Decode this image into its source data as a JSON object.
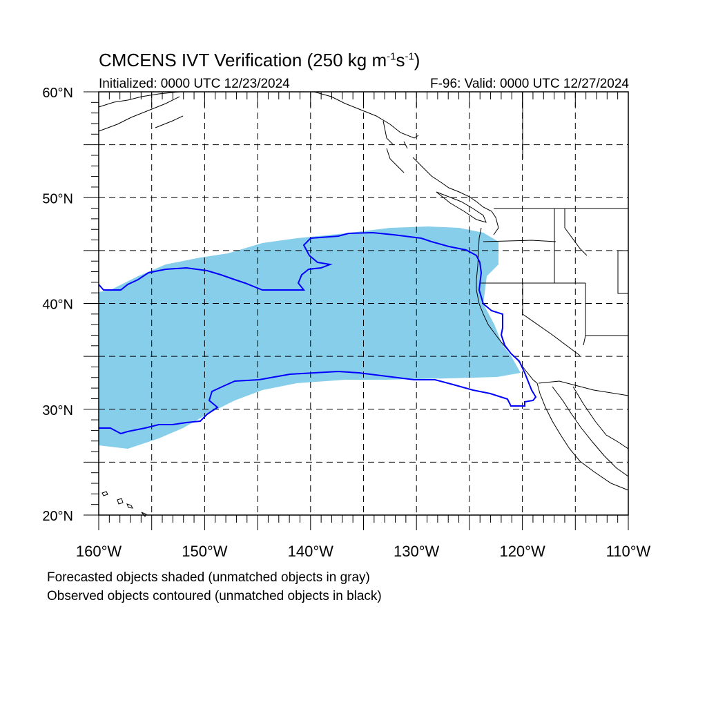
{
  "title": {
    "text": "CMCENS IVT Verification (250 kg m",
    "exp1": "-1",
    "mid": "s",
    "exp2": "-1",
    "close": ")"
  },
  "initialized": "Initialized: 0000 UTC 12/23/2024",
  "valid": "F-96: Valid: 0000 UTC 12/27/2024",
  "notes": {
    "forecast": "Forecasted objects shaded (unmatched objects in gray)",
    "observed": "Observed objects contoured (unmatched objects in black)"
  },
  "map": {
    "projection": "cylindrical equidistant",
    "lon_range": [
      -160,
      -110
    ],
    "lat_range": [
      20,
      60
    ],
    "grid": "dashed every 5 degrees",
    "lon_labels": [
      {
        "lon": -160,
        "text": "160°W"
      },
      {
        "lon": -150,
        "text": "150°W"
      },
      {
        "lon": -140,
        "text": "140°W"
      },
      {
        "lon": -130,
        "text": "130°W"
      },
      {
        "lon": -120,
        "text": "120°W"
      },
      {
        "lon": -110,
        "text": "110°W"
      }
    ],
    "lat_labels": [
      {
        "lat": 60,
        "text": "60°N"
      },
      {
        "lat": 50,
        "text": "50°N"
      },
      {
        "lat": 40,
        "text": "40°N"
      },
      {
        "lat": 30,
        "text": "30°N"
      },
      {
        "lat": 20,
        "text": "20°N"
      }
    ],
    "forecast_fill_color": "#87ceeb",
    "observed_contour_color": "#0000ff"
  }
}
